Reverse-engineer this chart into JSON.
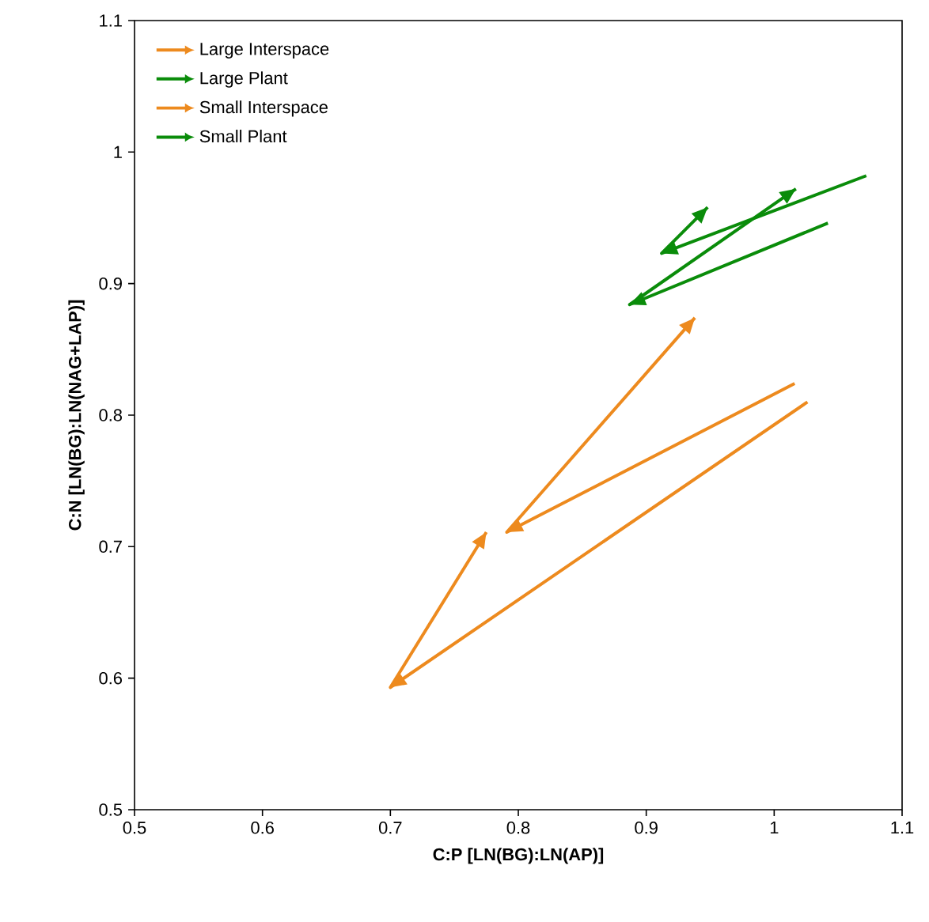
{
  "chart_data": {
    "type": "line",
    "xlabel": "C:P [LN(BG):LN(AP)]",
    "ylabel": "C:N [LN(BG):LN(NAG+LAP)]",
    "xlim": [
      0.5,
      1.1
    ],
    "ylim": [
      0.5,
      1.1
    ],
    "xticks": [
      0.5,
      0.6,
      0.7,
      0.8,
      0.9,
      1,
      1.1
    ],
    "yticks": [
      0.5,
      0.6,
      0.7,
      0.8,
      0.9,
      1,
      1.1
    ],
    "grid": false,
    "legend": "top left",
    "marker": "none",
    "line_style": "solid",
    "series": [
      {
        "name": "Large Interspace",
        "color": "#ed8a1e",
        "x": [
          1.026,
          0.7,
          0.775
        ],
        "values": [
          0.81,
          0.593,
          0.711
        ]
      },
      {
        "name": "Large Plant",
        "color": "#0a8c0a",
        "x": [
          1.072,
          0.912,
          0.948
        ],
        "values": [
          0.982,
          0.923,
          0.958
        ]
      },
      {
        "name": "Small Interspace",
        "color": "#ed8a1e",
        "x": [
          1.016,
          0.791,
          0.938
        ],
        "values": [
          0.824,
          0.711,
          0.874
        ]
      },
      {
        "name": "Small Plant",
        "color": "#0a8c0a",
        "x": [
          1.042,
          0.887,
          1.017
        ],
        "values": [
          0.946,
          0.884,
          0.972
        ]
      }
    ]
  }
}
